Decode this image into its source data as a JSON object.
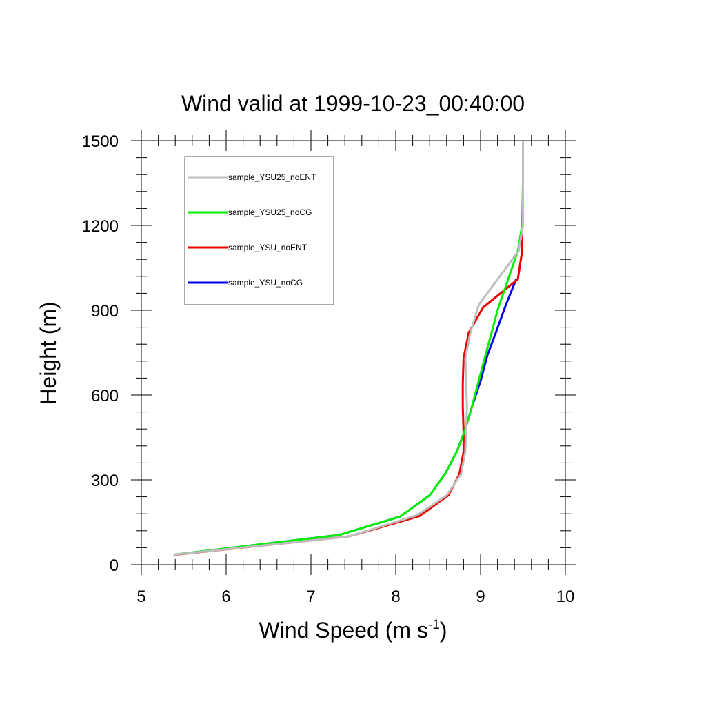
{
  "chart_data": {
    "type": "line",
    "title": "Wind valid at 1999-10-23_00:40:00",
    "xlabel": {
      "main": "Wind Speed (m s",
      "sup": "-1",
      "tail": ")"
    },
    "ylabel": "Height (m)",
    "xlim": [
      5,
      10
    ],
    "ylim": [
      0,
      1500
    ],
    "xticks": [
      "5",
      "6",
      "7",
      "8",
      "9",
      "10"
    ],
    "yticks": [
      "0",
      "300",
      "600",
      "900",
      "1200",
      "1500"
    ],
    "grid": false,
    "legend_position": "top-left",
    "series": [
      {
        "name": "sample_YSU25_noENT",
        "color": "#bebebe",
        "x": [
          5.38,
          7.45,
          8.25,
          8.6,
          8.77,
          8.82,
          8.83,
          8.84,
          8.83,
          8.82,
          8.88,
          8.98,
          9.45,
          9.5,
          9.5,
          9.5
        ],
        "y": [
          35,
          100,
          175,
          245,
          320,
          400,
          470,
          560,
          640,
          730,
          820,
          920,
          1110,
          1200,
          1350,
          1500
        ]
      },
      {
        "name": "sample_YSU25_noCG",
        "color": "#00ee00",
        "x": [
          5.38,
          7.33,
          8.05,
          8.4,
          8.58,
          8.72,
          8.81,
          8.89,
          8.96,
          9.04,
          9.2,
          9.44,
          9.49,
          9.5,
          9.5
        ],
        "y": [
          35,
          105,
          170,
          245,
          320,
          400,
          470,
          550,
          630,
          720,
          900,
          1110,
          1200,
          1350,
          1500
        ]
      },
      {
        "name": "sample_YSU_noENT",
        "color": "#ee0000",
        "x": [
          5.4,
          7.45,
          8.28,
          8.62,
          8.75,
          8.8,
          8.8,
          8.79,
          8.79,
          8.8,
          8.86,
          9.03,
          9.44,
          9.49,
          9.49
        ],
        "y": [
          35,
          100,
          172,
          245,
          320,
          400,
          470,
          560,
          640,
          730,
          820,
          910,
          1010,
          1110,
          1200
        ]
      },
      {
        "name": "sample_YSU_noCG",
        "color": "#0000ee",
        "x": [
          5.38,
          7.33,
          8.05,
          8.4,
          8.58,
          8.72,
          8.81,
          8.9,
          9.0,
          9.08,
          9.18,
          9.3,
          9.42
        ],
        "y": [
          35,
          105,
          170,
          245,
          320,
          400,
          470,
          560,
          650,
          740,
          820,
          920,
          1010
        ]
      }
    ]
  }
}
